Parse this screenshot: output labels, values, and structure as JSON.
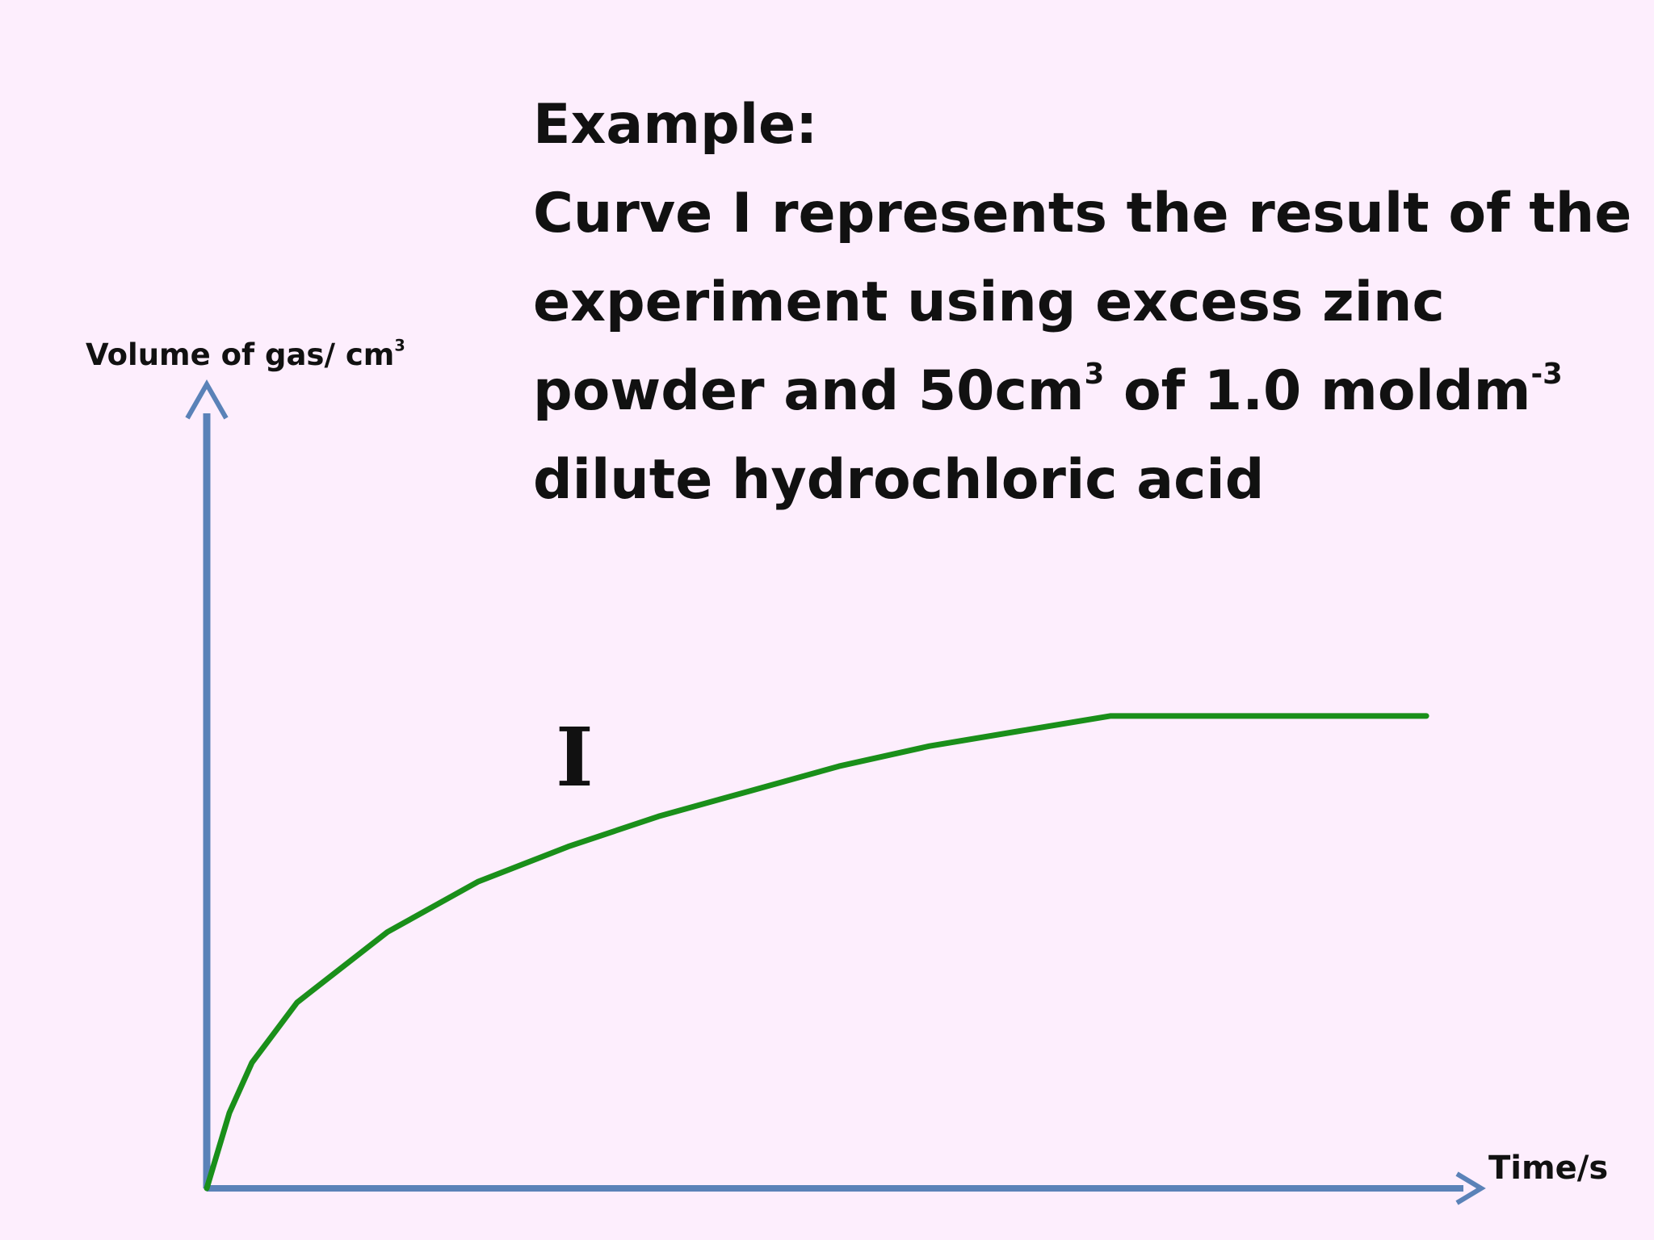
{
  "slide": {
    "heading": "Example:",
    "body_line1": "Curve I represents the result of the",
    "body_line2": "experiment using excess zinc",
    "body_line3_a": "powder and 50cm",
    "body_line3_sup1": "3",
    "body_line3_b": " of 1.0 moldm",
    "body_line3_sup2": "-3",
    "body_line4": "dilute hydrochloric acid"
  },
  "chart_data": {
    "type": "line",
    "xlabel": "Time/s",
    "ylabel": "Volume of gas/ cm",
    "ylabel_sup": "3",
    "x_ticks": [],
    "y_ticks": [],
    "series": [
      {
        "name": "I",
        "color": "#1a8f1a",
        "shape": "rises steeply from the origin, gradient decreases, then levels off to a horizontal plateau",
        "x": [
          0,
          0.25,
          0.5,
          1,
          2,
          3,
          4,
          5,
          6,
          7,
          8,
          9,
          10,
          12,
          13.5
        ],
        "y": [
          0,
          1.5,
          2.5,
          3.7,
          5.1,
          6.1,
          6.8,
          7.4,
          7.9,
          8.4,
          8.8,
          9.1,
          9.4,
          9.4,
          9.4
        ]
      }
    ],
    "curve_label": "I",
    "grid": false,
    "axis_color": "#5a82b8"
  }
}
